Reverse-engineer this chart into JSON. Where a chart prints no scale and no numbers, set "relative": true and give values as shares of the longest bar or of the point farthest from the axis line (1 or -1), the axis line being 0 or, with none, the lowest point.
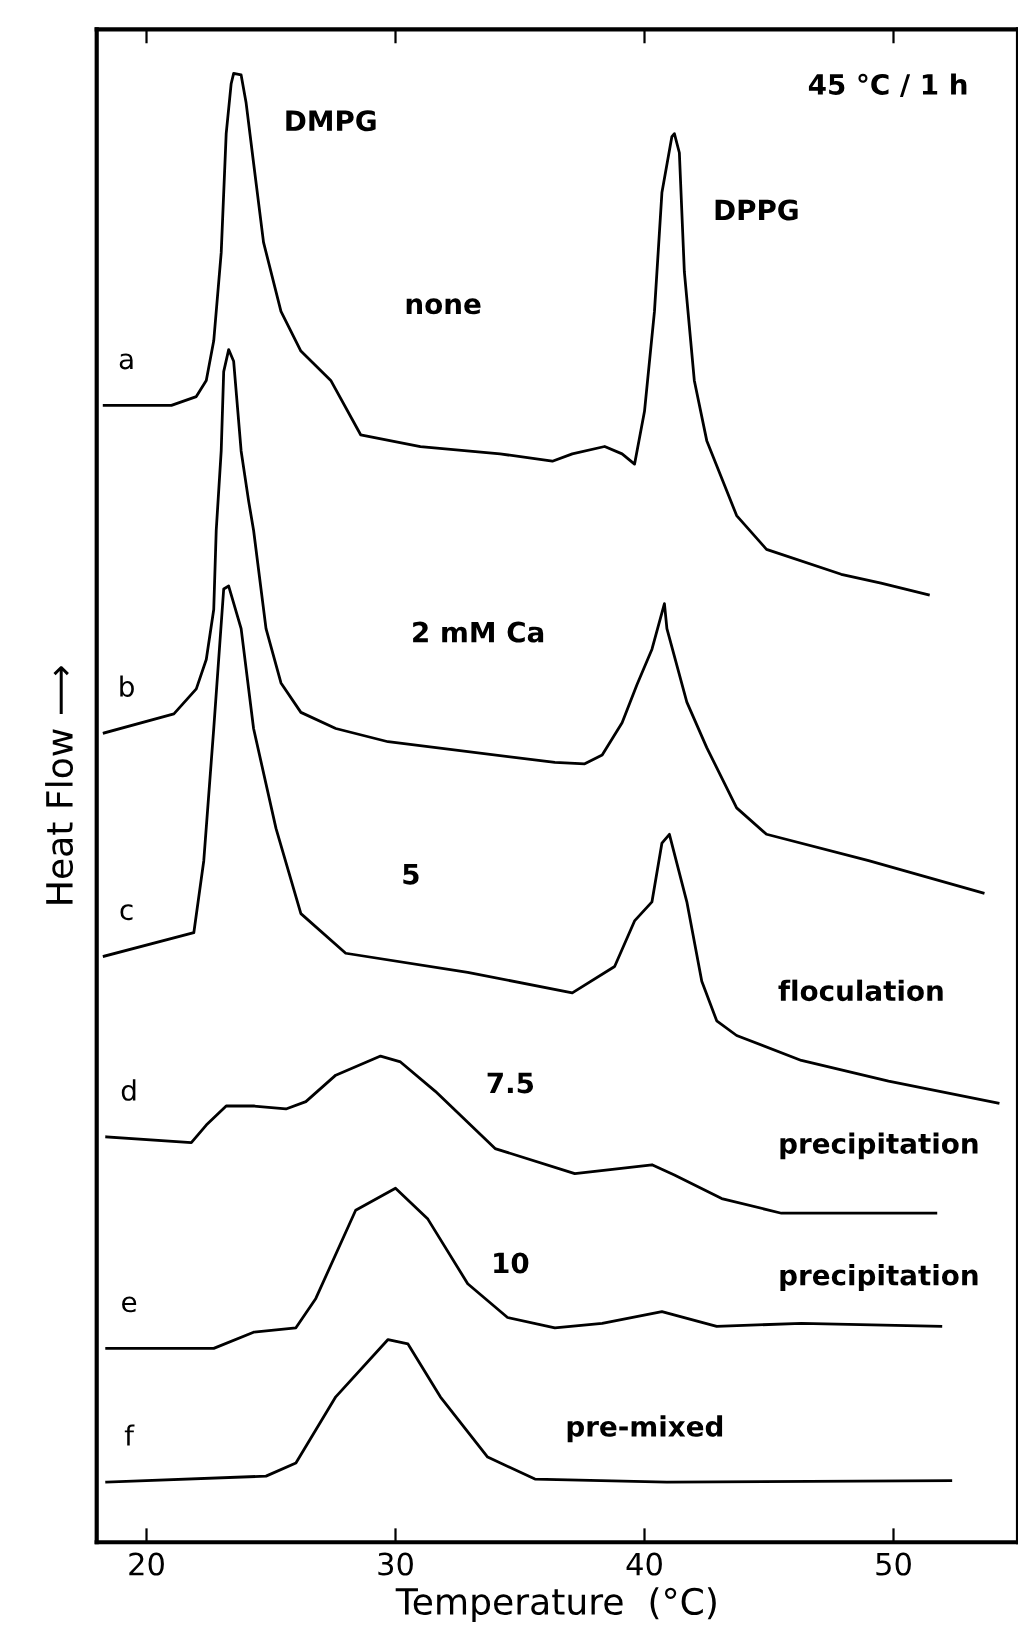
{
  "chart_data": {
    "type": "line",
    "relative": true,
    "xlabel": "Temperature  (°C)",
    "ylabel": "Heat Flow ⟶",
    "xlim": [
      18,
      55
    ],
    "xticks": [
      20,
      30,
      40,
      50
    ],
    "grid": false,
    "legend": false,
    "marker": "none",
    "line_style": "solid",
    "series": [
      {
        "name": "a",
        "color": "#000000",
        "x": [
          18.3,
          21.0,
          22.0,
          22.4,
          22.7,
          23.0,
          23.2,
          23.4,
          23.5,
          23.8,
          24.0,
          24.3,
          24.7,
          25.4,
          26.2,
          27.4,
          28.6,
          31.0,
          34.2,
          36.3,
          37.1,
          38.4,
          39.1,
          39.6,
          40.0,
          40.4,
          40.7,
          41.1,
          41.2,
          41.4,
          41.6,
          42.0,
          42.5,
          43.7,
          44.9,
          47.9,
          49.5,
          51.4
        ],
        "values": [
          0.774,
          0.774,
          0.78,
          0.791,
          0.818,
          0.878,
          0.959,
          0.993,
          1.0,
          0.999,
          0.98,
          0.939,
          0.885,
          0.838,
          0.811,
          0.791,
          0.754,
          0.746,
          0.741,
          0.736,
          0.741,
          0.746,
          0.741,
          0.734,
          0.77,
          0.838,
          0.919,
          0.957,
          0.959,
          0.946,
          0.865,
          0.791,
          0.75,
          0.699,
          0.676,
          0.659,
          0.653,
          0.645
        ]
      },
      {
        "name": "b",
        "color": "#000000",
        "x": [
          18.3,
          21.1,
          22.0,
          22.4,
          22.7,
          22.8,
          23.0,
          23.1,
          23.3,
          23.5,
          23.8,
          24.1,
          24.3,
          24.8,
          25.4,
          26.2,
          27.6,
          29.7,
          36.4,
          37.6,
          38.3,
          39.1,
          39.7,
          40.3,
          40.8,
          40.9,
          41.7,
          42.5,
          43.7,
          44.9,
          49.0,
          53.6
        ],
        "values": [
          0.551,
          0.564,
          0.581,
          0.601,
          0.635,
          0.689,
          0.743,
          0.797,
          0.812,
          0.804,
          0.743,
          0.709,
          0.689,
          0.622,
          0.585,
          0.565,
          0.554,
          0.545,
          0.531,
          0.53,
          0.536,
          0.558,
          0.584,
          0.608,
          0.639,
          0.622,
          0.572,
          0.541,
          0.5,
          0.482,
          0.464,
          0.442
        ]
      },
      {
        "name": "c",
        "color": "#000000",
        "x": [
          18.3,
          21.9,
          22.3,
          22.7,
          23.1,
          23.3,
          23.8,
          24.3,
          25.2,
          26.2,
          28.0,
          32.9,
          37.1,
          38.8,
          39.6,
          40.3,
          40.7,
          41.0,
          41.7,
          42.3,
          42.9,
          43.7,
          46.3,
          49.8,
          54.2
        ],
        "values": [
          0.399,
          0.415,
          0.464,
          0.554,
          0.649,
          0.651,
          0.622,
          0.554,
          0.486,
          0.428,
          0.401,
          0.388,
          0.374,
          0.392,
          0.423,
          0.436,
          0.476,
          0.482,
          0.436,
          0.382,
          0.355,
          0.345,
          0.328,
          0.314,
          0.299
        ]
      },
      {
        "name": "d",
        "color": "#000000",
        "x": [
          18.4,
          21.8,
          22.4,
          23.2,
          24.3,
          25.6,
          26.4,
          27.6,
          29.4,
          30.2,
          31.6,
          34.0,
          37.2,
          38.8,
          40.3,
          41.2,
          43.1,
          45.5,
          51.7
        ],
        "values": [
          0.276,
          0.272,
          0.284,
          0.297,
          0.297,
          0.295,
          0.3,
          0.318,
          0.331,
          0.327,
          0.307,
          0.268,
          0.251,
          0.254,
          0.257,
          0.25,
          0.234,
          0.224,
          0.224
        ]
      },
      {
        "name": "e",
        "color": "#000000",
        "x": [
          18.4,
          22.7,
          24.3,
          26.0,
          26.8,
          28.4,
          30.0,
          31.3,
          32.9,
          34.5,
          36.4,
          38.3,
          40.7,
          42.9,
          46.3,
          51.9
        ],
        "values": [
          0.132,
          0.132,
          0.143,
          0.146,
          0.166,
          0.226,
          0.241,
          0.22,
          0.176,
          0.153,
          0.146,
          0.149,
          0.157,
          0.147,
          0.149,
          0.147
        ]
      },
      {
        "name": "f",
        "color": "#000000",
        "x": [
          18.4,
          24.8,
          26.0,
          27.6,
          29.7,
          30.5,
          31.8,
          33.7,
          35.6,
          40.9,
          52.3
        ],
        "values": [
          0.041,
          0.045,
          0.054,
          0.099,
          0.138,
          0.135,
          0.099,
          0.058,
          0.043,
          0.041,
          0.042
        ]
      }
    ],
    "annotations": [
      "45 °C / 1 h",
      "DMPG",
      "DPPG",
      "none",
      "2 mM Ca",
      "5",
      "floculation",
      "7.5",
      "precipitation",
      "10",
      "precipitation",
      "pre-mixed"
    ]
  }
}
